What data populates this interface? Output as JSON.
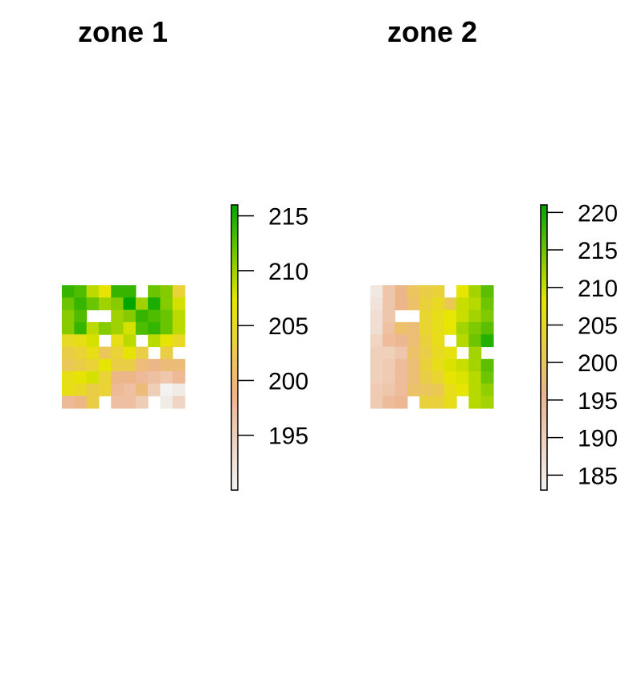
{
  "chart_data": [
    {
      "type": "heatmap",
      "title": "zone 1",
      "color_scale": {
        "min": 190,
        "max": 216,
        "ticks": [
          195,
          200,
          205,
          210,
          215
        ],
        "colors": [
          "#f2f2f2",
          "#edb48e",
          "#e6e600",
          "#00a600"
        ]
      },
      "grid": [
        [
          214,
          213,
          209,
          207,
          214,
          214,
          null,
          212,
          211,
          204
        ],
        [
          212,
          214,
          212,
          210,
          211,
          216,
          210,
          215,
          211,
          208
        ],
        [
          211,
          213,
          null,
          null,
          210,
          211,
          214,
          213,
          212,
          209
        ],
        [
          211,
          214,
          209,
          211,
          210,
          208,
          213,
          214,
          212,
          209
        ],
        [
          205,
          206,
          208,
          null,
          206,
          209,
          null,
          209,
          207,
          205
        ],
        [
          203,
          204,
          206,
          202,
          204,
          207,
          203,
          null,
          203,
          null
        ],
        [
          202,
          203,
          204,
          207,
          203,
          203,
          200,
          199,
          200,
          200
        ],
        [
          206,
          207,
          208,
          204,
          199,
          199,
          198,
          197,
          196,
          198
        ],
        [
          206,
          205,
          203,
          204,
          198,
          197,
          200,
          195,
          190,
          191
        ],
        [
          198,
          199,
          203,
          null,
          197,
          197,
          195,
          null,
          191,
          194
        ]
      ]
    },
    {
      "type": "heatmap",
      "title": "zone 2",
      "color_scale": {
        "min": 183,
        "max": 221,
        "ticks": [
          185,
          190,
          195,
          200,
          205,
          210,
          215,
          220
        ],
        "colors": [
          "#f2f2f2",
          "#edb48e",
          "#e6e600",
          "#00a600"
        ]
      },
      "grid": [
        [
          185,
          192,
          196,
          200,
          202,
          203,
          null,
          208,
          212,
          216
        ],
        [
          186,
          192,
          196,
          199,
          203,
          205,
          201,
          210,
          211,
          215
        ],
        [
          187,
          192,
          null,
          null,
          204,
          206,
          208,
          210,
          212,
          214
        ],
        [
          187,
          193,
          199,
          198,
          204,
          206,
          208,
          212,
          214,
          216
        ],
        [
          189,
          194,
          195,
          198,
          203,
          206,
          null,
          211,
          215,
          219
        ],
        [
          190,
          190,
          192,
          199,
          202,
          205,
          207,
          null,
          212,
          null
        ],
        [
          190,
          191,
          194,
          198,
          203,
          206,
          209,
          210,
          212,
          216
        ],
        [
          190,
          191,
          194,
          198,
          202,
          204,
          208,
          209,
          211,
          215
        ],
        [
          191,
          192,
          194,
          199,
          200,
          201,
          206,
          208,
          211,
          213
        ],
        [
          191,
          194,
          195,
          null,
          203,
          203,
          206,
          null,
          211,
          212
        ]
      ]
    }
  ]
}
